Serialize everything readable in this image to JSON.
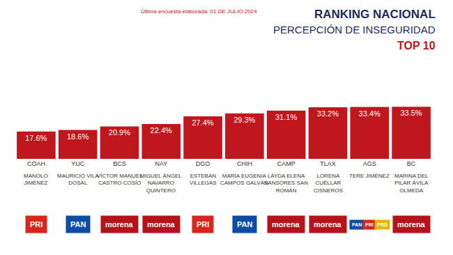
{
  "chart_data": {
    "type": "bar",
    "title": "RANKING NACIONAL",
    "subtitle": "PERCEPCIÓN DE INSEGURIDAD",
    "badge": "TOP 10",
    "note": "Última encuesta elaborada: 01 DE JULIO 2024",
    "categories": [
      "COAH",
      "YUC",
      "BCS",
      "NAY",
      "DGO",
      "CHIH",
      "CAMP",
      "TLAX",
      "AGS",
      "BC"
    ],
    "values": [
      17.6,
      18.6,
      20.9,
      22.4,
      27.4,
      29.3,
      31.1,
      33.2,
      33.4,
      33.5
    ],
    "value_labels": [
      "17.6%",
      "18.6%",
      "20.9%",
      "22.4%",
      "27.4%",
      "29.3%",
      "31.1%",
      "33.2%",
      "33.4%",
      "33.5%"
    ],
    "names": [
      "MANOLO JIMÉNEZ",
      "MAURICIO VILA DOSAL",
      "VÍCTOR MANUEL CASTRO COSÍO",
      "MIGUEL ÁNGEL NAVARRO QUINTERO",
      "ESTEBAN VILLEGAS",
      "MARÍA EUGENIA CAMPOS GALVÁN",
      "LAYDA ELENA SANSORES SAN ROMÁN",
      "LORENA CUÉLLAR CISNEROS",
      "TERE JIMÉNEZ",
      "MARINA DEL PILAR ÁVILA OLMEDA"
    ],
    "parties": [
      [
        {
          "name": "PRI",
          "color": "#d9261c"
        }
      ],
      [
        {
          "name": "PAN",
          "color": "#0b4da2"
        }
      ],
      [
        {
          "name": "morena",
          "color": "#b5121b"
        }
      ],
      [
        {
          "name": "morena",
          "color": "#b5121b"
        }
      ],
      [
        {
          "name": "PRI",
          "color": "#d9261c"
        }
      ],
      [
        {
          "name": "PAN",
          "color": "#0b4da2"
        }
      ],
      [
        {
          "name": "morena",
          "color": "#b5121b"
        }
      ],
      [
        {
          "name": "morena",
          "color": "#b5121b"
        }
      ],
      [
        {
          "name": "PAN",
          "color": "#0b4da2"
        },
        {
          "name": "PRI",
          "color": "#d9261c"
        },
        {
          "name": "PRD",
          "color": "#e5b800"
        }
      ],
      [
        {
          "name": "morena",
          "color": "#b5121b"
        }
      ]
    ],
    "color": "#c0161d",
    "ylim": [
      0,
      35
    ],
    "grid": false,
    "data_labels": true,
    "tick_labels": "x"
  }
}
